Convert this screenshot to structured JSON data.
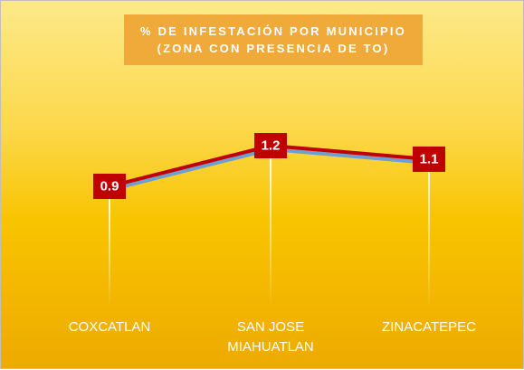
{
  "chart_data": {
    "type": "line",
    "title": "% DE INFESTACIÓN POR MUNICIPIO\n(ZONA CON PRESENCIA DE TO)",
    "categories": [
      "COXCATLAN",
      "SAN JOSE MIAHUATLAN",
      "ZINACATEPEC"
    ],
    "series": [
      {
        "name": "% de infestación",
        "color": "#c00000",
        "values": [
          0.9,
          1.2,
          1.1
        ]
      }
    ],
    "ylim": [
      0,
      2
    ]
  }
}
